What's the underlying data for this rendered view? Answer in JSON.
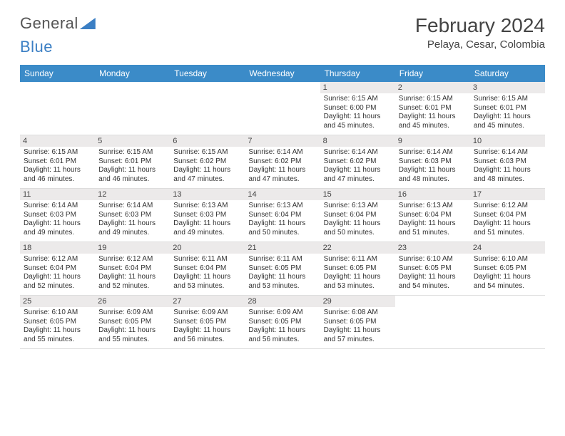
{
  "logo": {
    "text1": "General",
    "text2": "Blue"
  },
  "title": "February 2024",
  "location": "Pelaya, Cesar, Colombia",
  "colors": {
    "header_bg": "#3b8bc8",
    "header_text": "#ffffff",
    "daynum_bg": "#eceaea",
    "week_sep": "#3b7fc4",
    "body_text": "#333333",
    "logo_blue": "#3b7fc4"
  },
  "day_headers": [
    "Sunday",
    "Monday",
    "Tuesday",
    "Wednesday",
    "Thursday",
    "Friday",
    "Saturday"
  ],
  "weeks": [
    [
      null,
      null,
      null,
      null,
      {
        "n": "1",
        "sr": "6:15 AM",
        "ss": "6:00 PM",
        "dl": "11 hours and 45 minutes."
      },
      {
        "n": "2",
        "sr": "6:15 AM",
        "ss": "6:01 PM",
        "dl": "11 hours and 45 minutes."
      },
      {
        "n": "3",
        "sr": "6:15 AM",
        "ss": "6:01 PM",
        "dl": "11 hours and 45 minutes."
      }
    ],
    [
      {
        "n": "4",
        "sr": "6:15 AM",
        "ss": "6:01 PM",
        "dl": "11 hours and 46 minutes."
      },
      {
        "n": "5",
        "sr": "6:15 AM",
        "ss": "6:01 PM",
        "dl": "11 hours and 46 minutes."
      },
      {
        "n": "6",
        "sr": "6:15 AM",
        "ss": "6:02 PM",
        "dl": "11 hours and 47 minutes."
      },
      {
        "n": "7",
        "sr": "6:14 AM",
        "ss": "6:02 PM",
        "dl": "11 hours and 47 minutes."
      },
      {
        "n": "8",
        "sr": "6:14 AM",
        "ss": "6:02 PM",
        "dl": "11 hours and 47 minutes."
      },
      {
        "n": "9",
        "sr": "6:14 AM",
        "ss": "6:03 PM",
        "dl": "11 hours and 48 minutes."
      },
      {
        "n": "10",
        "sr": "6:14 AM",
        "ss": "6:03 PM",
        "dl": "11 hours and 48 minutes."
      }
    ],
    [
      {
        "n": "11",
        "sr": "6:14 AM",
        "ss": "6:03 PM",
        "dl": "11 hours and 49 minutes."
      },
      {
        "n": "12",
        "sr": "6:14 AM",
        "ss": "6:03 PM",
        "dl": "11 hours and 49 minutes."
      },
      {
        "n": "13",
        "sr": "6:13 AM",
        "ss": "6:03 PM",
        "dl": "11 hours and 49 minutes."
      },
      {
        "n": "14",
        "sr": "6:13 AM",
        "ss": "6:04 PM",
        "dl": "11 hours and 50 minutes."
      },
      {
        "n": "15",
        "sr": "6:13 AM",
        "ss": "6:04 PM",
        "dl": "11 hours and 50 minutes."
      },
      {
        "n": "16",
        "sr": "6:13 AM",
        "ss": "6:04 PM",
        "dl": "11 hours and 51 minutes."
      },
      {
        "n": "17",
        "sr": "6:12 AM",
        "ss": "6:04 PM",
        "dl": "11 hours and 51 minutes."
      }
    ],
    [
      {
        "n": "18",
        "sr": "6:12 AM",
        "ss": "6:04 PM",
        "dl": "11 hours and 52 minutes."
      },
      {
        "n": "19",
        "sr": "6:12 AM",
        "ss": "6:04 PM",
        "dl": "11 hours and 52 minutes."
      },
      {
        "n": "20",
        "sr": "6:11 AM",
        "ss": "6:04 PM",
        "dl": "11 hours and 53 minutes."
      },
      {
        "n": "21",
        "sr": "6:11 AM",
        "ss": "6:05 PM",
        "dl": "11 hours and 53 minutes."
      },
      {
        "n": "22",
        "sr": "6:11 AM",
        "ss": "6:05 PM",
        "dl": "11 hours and 53 minutes."
      },
      {
        "n": "23",
        "sr": "6:10 AM",
        "ss": "6:05 PM",
        "dl": "11 hours and 54 minutes."
      },
      {
        "n": "24",
        "sr": "6:10 AM",
        "ss": "6:05 PM",
        "dl": "11 hours and 54 minutes."
      }
    ],
    [
      {
        "n": "25",
        "sr": "6:10 AM",
        "ss": "6:05 PM",
        "dl": "11 hours and 55 minutes."
      },
      {
        "n": "26",
        "sr": "6:09 AM",
        "ss": "6:05 PM",
        "dl": "11 hours and 55 minutes."
      },
      {
        "n": "27",
        "sr": "6:09 AM",
        "ss": "6:05 PM",
        "dl": "11 hours and 56 minutes."
      },
      {
        "n": "28",
        "sr": "6:09 AM",
        "ss": "6:05 PM",
        "dl": "11 hours and 56 minutes."
      },
      {
        "n": "29",
        "sr": "6:08 AM",
        "ss": "6:05 PM",
        "dl": "11 hours and 57 minutes."
      },
      null,
      null
    ]
  ],
  "labels": {
    "sunrise": "Sunrise:",
    "sunset": "Sunset:",
    "daylight": "Daylight:"
  }
}
